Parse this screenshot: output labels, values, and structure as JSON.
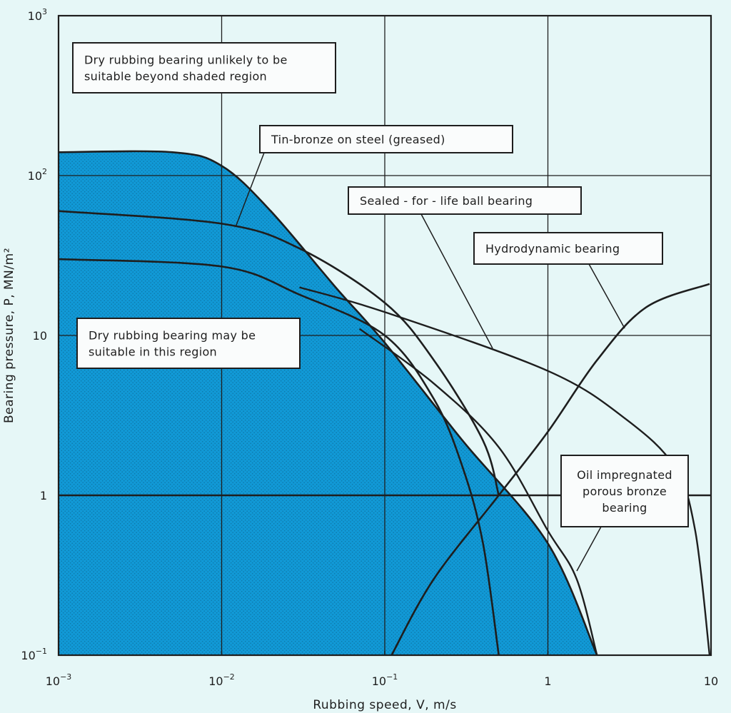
{
  "chart_data": {
    "type": "line",
    "x_scale": "log",
    "y_scale": "log",
    "xlim": [
      0.001,
      10
    ],
    "ylim": [
      0.1,
      1000
    ],
    "xlabel": "Rubbing speed, V, m/s",
    "ylabel": "Bearing pressure, P, MN/m²",
    "grid": true,
    "x_ticks": [
      {
        "value": 0.001,
        "base": "10",
        "exp": "−3"
      },
      {
        "value": 0.01,
        "base": "10",
        "exp": "−2"
      },
      {
        "value": 0.1,
        "base": "10",
        "exp": "−1"
      },
      {
        "value": 1,
        "base": "1",
        "exp": ""
      },
      {
        "value": 10,
        "base": "10",
        "exp": ""
      }
    ],
    "y_ticks": [
      {
        "value": 1000,
        "base": "10",
        "exp": "3"
      },
      {
        "value": 100,
        "base": "10",
        "exp": "2"
      },
      {
        "value": 10,
        "base": "10",
        "exp": ""
      },
      {
        "value": 1,
        "base": "1",
        "exp": ""
      },
      {
        "value": 0.1,
        "base": "10",
        "exp": "−1"
      }
    ],
    "shaded_region": {
      "label": "Dry rubbing bearing may be suitable in this region",
      "fill": "#1199d6",
      "boundary": [
        [
          0.001,
          140
        ],
        [
          0.005,
          140
        ],
        [
          0.01,
          115
        ],
        [
          0.02,
          60
        ],
        [
          0.05,
          20
        ],
        [
          0.1,
          9
        ],
        [
          0.3,
          2.2
        ],
        [
          1,
          0.5
        ],
        [
          2,
          0.1
        ]
      ]
    },
    "series": [
      {
        "name": "Tin-bronze on steel (greased)",
        "points": [
          [
            0.001,
            60
          ],
          [
            0.01,
            50
          ],
          [
            0.03,
            35
          ],
          [
            0.1,
            16
          ],
          [
            0.2,
            7
          ],
          [
            0.4,
            2.2
          ],
          [
            0.5,
            1
          ]
        ]
      },
      {
        "name": "Tin-bronze on steel (greased)",
        "points": [
          [
            0.001,
            30
          ],
          [
            0.01,
            27
          ],
          [
            0.03,
            18
          ],
          [
            0.1,
            10
          ],
          [
            0.2,
            4
          ],
          [
            0.3,
            1.5
          ],
          [
            0.4,
            0.5
          ],
          [
            0.5,
            0.1
          ]
        ]
      },
      {
        "name": "Sealed-for-life ball bearing",
        "points": [
          [
            0.03,
            20
          ],
          [
            0.1,
            14
          ],
          [
            1,
            6
          ],
          [
            3,
            3
          ],
          [
            6,
            1.5
          ],
          [
            8,
            0.6
          ],
          [
            9.8,
            0.1
          ]
        ]
      },
      {
        "name": "Hydrodynamic bearing",
        "points": [
          [
            0.11,
            0.1
          ],
          [
            0.2,
            0.3
          ],
          [
            0.5,
            1
          ],
          [
            1,
            2.5
          ],
          [
            2,
            7
          ],
          [
            4,
            15
          ],
          [
            9.8,
            21
          ]
        ]
      },
      {
        "name": "Oil impregnated porous bronze bearing",
        "points": [
          [
            0.07,
            11
          ],
          [
            0.2,
            5
          ],
          [
            0.5,
            2
          ],
          [
            1,
            0.6
          ],
          [
            1.5,
            0.3
          ],
          [
            2,
            0.1
          ]
        ]
      }
    ],
    "annotations": [
      {
        "id": "unlikely",
        "lines": [
          "Dry rubbing bearing unlikely to be",
          "suitable beyond shaded region"
        ]
      },
      {
        "id": "tinbronze",
        "lines": [
          "Tin-bronze on steel (greased)"
        ]
      },
      {
        "id": "ballbearing",
        "lines": [
          "Sealed - for - life ball bearing"
        ]
      },
      {
        "id": "hydrodynamic",
        "lines": [
          "Hydrodynamic bearing"
        ]
      },
      {
        "id": "mayberegion",
        "lines": [
          "Dry rubbing bearing may be",
          "suitable in this region"
        ]
      },
      {
        "id": "oilbronze",
        "lines": [
          "Oil impregnated",
          "porous bronze",
          "bearing"
        ]
      }
    ],
    "colors": {
      "background": "#e6f7f7",
      "shaded": "#1199d6",
      "ink": "#1e1e1e"
    }
  }
}
